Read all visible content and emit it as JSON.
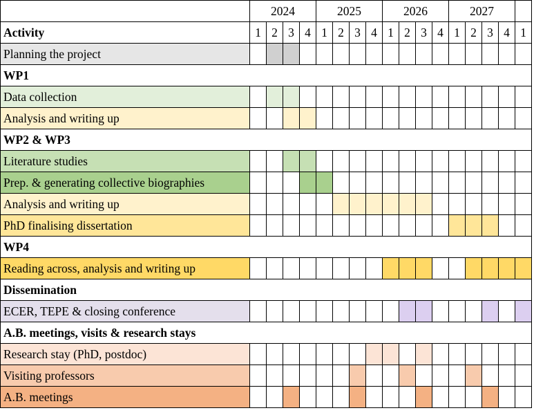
{
  "palette": {
    "planning": "#e6e6e6",
    "planning_active": "#d0d0d0",
    "wp1_data": "#e2efda",
    "wp1_analysis": "#fff2cc",
    "wp23_lit": "#c6e0b4",
    "wp23_prep": "#a9d08e",
    "wp23_analysis": "#fff2cc",
    "wp23_phd": "#ffe699",
    "wp4_reading": "#ffd966",
    "diss": "#e4dfec",
    "diss_active": "#dccff0",
    "ab_research": "#fce4d6",
    "ab_visiting": "#f8cbad",
    "ab_meetings": "#f4b183"
  },
  "header": {
    "years": [
      "2024",
      "2025",
      "2026",
      "2027"
    ],
    "activity_label": "Activity",
    "quarters": [
      "1",
      "2",
      "3",
      "4",
      "1",
      "2",
      "3",
      "4",
      "1",
      "2",
      "3",
      "4",
      "1",
      "2",
      "3",
      "4",
      "1"
    ]
  },
  "rows": [
    {
      "type": "task",
      "label": "Planning the project",
      "label_color": "planning",
      "fill_color": "planning_active",
      "active": [
        1,
        2
      ]
    },
    {
      "type": "section",
      "label": "WP1"
    },
    {
      "type": "task",
      "label": "Data collection",
      "label_color": "wp1_data",
      "fill_color": "wp1_data",
      "active": [
        1,
        2
      ]
    },
    {
      "type": "task",
      "label": "Analysis and writing up",
      "label_color": "wp1_analysis",
      "fill_color": "wp1_analysis",
      "active": [
        2,
        3
      ]
    },
    {
      "type": "section",
      "label": "WP2 & WP3"
    },
    {
      "type": "task",
      "label": "Literature studies",
      "label_color": "wp23_lit",
      "fill_color": "wp23_lit",
      "active": [
        2,
        3
      ]
    },
    {
      "type": "task",
      "label": "Prep. & generating collective biographies",
      "label_color": "wp23_prep",
      "fill_color": "wp23_prep",
      "active": [
        3,
        4
      ]
    },
    {
      "type": "task",
      "label": "Analysis and writing up",
      "label_color": "wp23_analysis",
      "fill_color": "wp23_analysis",
      "active": [
        5,
        6,
        7,
        8,
        9,
        10
      ]
    },
    {
      "type": "task",
      "label": "PhD finalising dissertation",
      "label_color": "wp23_phd",
      "fill_color": "wp23_phd",
      "active": [
        12,
        13,
        14
      ]
    },
    {
      "type": "section",
      "label": "WP4"
    },
    {
      "type": "task",
      "label": "Reading across, analysis and writing up",
      "label_color": "wp4_reading",
      "fill_color": "wp4_reading",
      "active": [
        8,
        9,
        10,
        13,
        14,
        15,
        16
      ]
    },
    {
      "type": "section",
      "label": "Dissemination"
    },
    {
      "type": "task",
      "label": "ECER, TEPE & closing conference",
      "label_color": "diss",
      "fill_color": "diss_active",
      "active": [
        9,
        10,
        14,
        16
      ]
    },
    {
      "type": "section",
      "label": "A.B. meetings, visits & research stays"
    },
    {
      "type": "task",
      "label": "Research stay (PhD, postdoc)",
      "label_color": "ab_research",
      "fill_color": "ab_research",
      "active": [
        7,
        8,
        10
      ]
    },
    {
      "type": "task",
      "label": "Visiting professors",
      "label_color": "ab_visiting",
      "fill_color": "ab_visiting",
      "active": [
        6,
        9,
        13
      ]
    },
    {
      "type": "task",
      "label": "A.B. meetings",
      "label_color": "ab_meetings",
      "fill_color": "ab_meetings",
      "active": [
        2,
        6,
        10,
        14
      ]
    }
  ]
}
